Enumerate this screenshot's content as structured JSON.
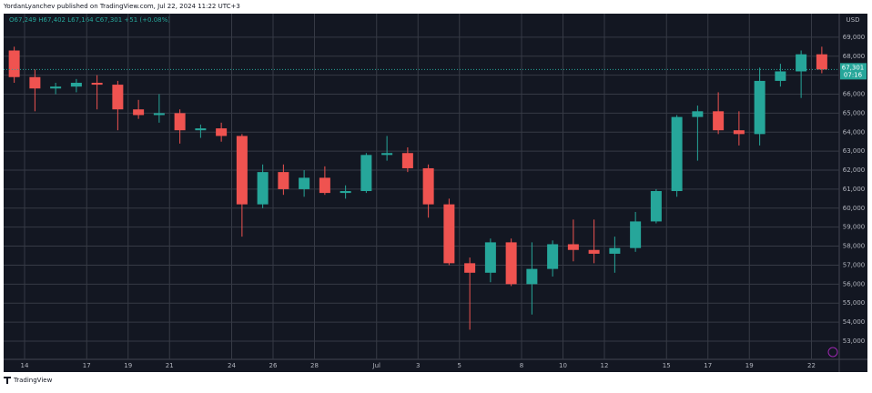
{
  "header": "YordanLyanchev published on TradingView.com, Jul 22, 2024 11:22 UTC+3",
  "footer": "TradingView",
  "chart_data": {
    "type": "candlestick",
    "legend_text": "O67,249 H67,402 L67,164 C67,301 +51 (+0.08%)",
    "currency": "USD",
    "last_price": {
      "value": 67301,
      "label": "67,301"
    },
    "countdown": "07:16",
    "up_color": "#26a69a",
    "down_color": "#ef5350",
    "categories": [
      null,
      "14",
      null,
      null,
      "17",
      null,
      "19",
      null,
      "21",
      null,
      null,
      "24",
      null,
      "26",
      null,
      "28",
      null,
      null,
      "Jul",
      null,
      "3",
      null,
      "5",
      null,
      null,
      "8",
      null,
      "10",
      null,
      "12",
      null,
      null,
      "15",
      null,
      "17",
      null,
      "19",
      null,
      null,
      "22"
    ],
    "open": [
      68300,
      66900,
      66300,
      66400,
      66600,
      66500,
      65200,
      64900,
      65000,
      64100,
      64200,
      63800,
      60200,
      61900,
      61000,
      61600,
      60800,
      60900,
      62800,
      62900,
      62100,
      60200,
      57100,
      56600,
      58200,
      56000,
      56800,
      58100,
      57800,
      57600,
      57900,
      59300,
      60900,
      64800,
      65100,
      64100,
      63900,
      66700,
      67200,
      68100
    ],
    "high": [
      68500,
      67300,
      66600,
      66800,
      67000,
      66700,
      65700,
      66000,
      65200,
      64400,
      64500,
      63900,
      62300,
      62300,
      62000,
      62200,
      61200,
      62900,
      63800,
      63200,
      62300,
      60500,
      57400,
      58400,
      58400,
      58200,
      58300,
      59400,
      59400,
      58500,
      59800,
      61000,
      64900,
      65400,
      66100,
      65100,
      67400,
      67600,
      68300,
      68500
    ],
    "low": [
      66600,
      65100,
      66000,
      66100,
      65200,
      64100,
      64700,
      64500,
      63400,
      63700,
      63500,
      58500,
      60000,
      60700,
      60600,
      60700,
      60500,
      60800,
      62500,
      61900,
      59500,
      57000,
      53600,
      56100,
      55900,
      54400,
      56400,
      57200,
      57100,
      56600,
      57700,
      59200,
      60600,
      62500,
      63900,
      63300,
      63300,
      66400,
      65800,
      67100
    ],
    "close": [
      66900,
      66300,
      66400,
      66600,
      66500,
      65200,
      64900,
      65000,
      64100,
      64200,
      63800,
      60200,
      61900,
      61000,
      61600,
      60800,
      60900,
      62800,
      62900,
      62100,
      60200,
      57100,
      56600,
      58200,
      56000,
      56800,
      58100,
      57800,
      57600,
      57900,
      59300,
      60900,
      64800,
      65100,
      64100,
      63900,
      66700,
      67200,
      68100,
      67300
    ],
    "ylim": [
      52040,
      70240
    ],
    "yticks": [
      {
        "value": 53000,
        "label": "53,000"
      },
      {
        "value": 54000,
        "label": "54,000"
      },
      {
        "value": 55000,
        "label": "55,000"
      },
      {
        "value": 56000,
        "label": "56,000"
      },
      {
        "value": 57000,
        "label": "57,000"
      },
      {
        "value": 58000,
        "label": "58,000"
      },
      {
        "value": 59000,
        "label": "59,000"
      },
      {
        "value": 60000,
        "label": "60,000"
      },
      {
        "value": 61000,
        "label": "61,000"
      },
      {
        "value": 62000,
        "label": "62,000"
      },
      {
        "value": 63000,
        "label": "63,000"
      },
      {
        "value": 64000,
        "label": "64,000"
      },
      {
        "value": 65000,
        "label": "65,000"
      },
      {
        "value": 66000,
        "label": "66,000"
      },
      {
        "value": 67000,
        "label": "67,000"
      },
      {
        "value": 68000,
        "label": "68,000"
      },
      {
        "value": 69000,
        "label": "69,000"
      }
    ],
    "grid": true
  }
}
